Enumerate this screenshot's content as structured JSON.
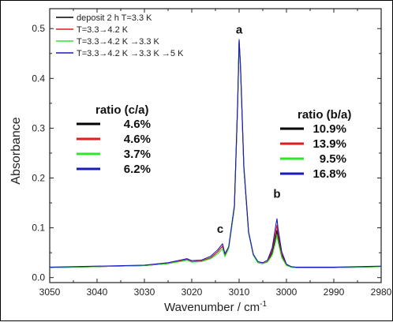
{
  "chart_data": {
    "type": "line",
    "title": "",
    "xlabel": "Wavenumber / cm",
    "xlabel_superscript": "-1",
    "ylabel": "Absorbance",
    "xlim": [
      3050,
      2980
    ],
    "ylim": [
      -0.01,
      0.54
    ],
    "x_reversed": true,
    "x_ticks": [
      3050,
      3040,
      3030,
      3020,
      3010,
      3000,
      2990,
      2980
    ],
    "y_ticks": [
      0.0,
      0.1,
      0.2,
      0.3,
      0.4,
      0.5
    ],
    "x_tick_labels": [
      "3050",
      "3040",
      "3030",
      "3020",
      "3010",
      "3000",
      "2990",
      "2980"
    ],
    "y_tick_labels": [
      "0.0",
      "0.1",
      "0.2",
      "0.3",
      "0.4",
      "0.5"
    ],
    "legend_position": "top-left",
    "grid": false,
    "x": [
      3050,
      3040,
      3030,
      3025,
      3022,
      3021,
      3020,
      3018,
      3016,
      3014.5,
      3013.5,
      3013,
      3012.2,
      3011,
      3010.3,
      3010,
      3009.7,
      3009,
      3008,
      3007,
      3006,
      3005,
      3004,
      3003,
      3002.2,
      3002,
      3001.8,
      3001,
      3000,
      2999,
      2998,
      2995,
      2990,
      2985,
      2980
    ],
    "series": [
      {
        "name": "deposit 2 h T=3.3 K",
        "color": "#000000",
        "values": [
          0.02,
          0.022,
          0.024,
          0.028,
          0.034,
          0.036,
          0.032,
          0.033,
          0.04,
          0.052,
          0.063,
          0.045,
          0.06,
          0.14,
          0.35,
          0.475,
          0.42,
          0.22,
          0.09,
          0.045,
          0.03,
          0.028,
          0.032,
          0.05,
          0.085,
          0.095,
          0.082,
          0.045,
          0.025,
          0.021,
          0.02,
          0.02,
          0.02,
          0.021,
          0.022
        ]
      },
      {
        "name": "T=3.3→4.2 K",
        "color": "#e41a1c",
        "values": [
          0.02,
          0.022,
          0.024,
          0.028,
          0.034,
          0.036,
          0.032,
          0.033,
          0.04,
          0.052,
          0.063,
          0.045,
          0.06,
          0.14,
          0.35,
          0.475,
          0.42,
          0.22,
          0.09,
          0.045,
          0.03,
          0.028,
          0.032,
          0.055,
          0.095,
          0.105,
          0.09,
          0.048,
          0.025,
          0.021,
          0.02,
          0.02,
          0.02,
          0.021,
          0.022
        ]
      },
      {
        "name": "T=3.3→4.2 K →3.3 K",
        "color": "#2ee62e",
        "values": [
          0.02,
          0.022,
          0.024,
          0.028,
          0.033,
          0.035,
          0.031,
          0.032,
          0.038,
          0.048,
          0.058,
          0.042,
          0.058,
          0.14,
          0.35,
          0.473,
          0.42,
          0.22,
          0.09,
          0.045,
          0.03,
          0.028,
          0.031,
          0.045,
          0.075,
          0.085,
          0.073,
          0.04,
          0.024,
          0.021,
          0.02,
          0.02,
          0.02,
          0.021,
          0.022
        ]
      },
      {
        "name": "T=3.3→4.2 K →3.3 K →5 K",
        "color": "#1a1ab8",
        "values": [
          0.021,
          0.023,
          0.025,
          0.03,
          0.036,
          0.038,
          0.034,
          0.035,
          0.043,
          0.056,
          0.068,
          0.048,
          0.062,
          0.145,
          0.355,
          0.478,
          0.425,
          0.225,
          0.092,
          0.047,
          0.032,
          0.03,
          0.035,
          0.06,
          0.108,
          0.118,
          0.1,
          0.052,
          0.027,
          0.022,
          0.021,
          0.021,
          0.021,
          0.022,
          0.023
        ]
      }
    ],
    "peak_labels": [
      {
        "text": "a",
        "x": 3010,
        "y": 0.49
      },
      {
        "text": "b",
        "x": 3002,
        "y": 0.16
      },
      {
        "text": "c",
        "x": 3014,
        "y": 0.09
      }
    ],
    "ratio_tables": [
      {
        "title": "ratio (c/a)",
        "rows": [
          {
            "color": "#000000",
            "value": "4.6%"
          },
          {
            "color": "#e41a1c",
            "value": "4.6%"
          },
          {
            "color": "#2ee62e",
            "value": "3.7%"
          },
          {
            "color": "#1a1ab8",
            "value": "6.2%"
          }
        ]
      },
      {
        "title": "ratio (b/a)",
        "rows": [
          {
            "color": "#000000",
            "value": "10.9%"
          },
          {
            "color": "#e41a1c",
            "value": "13.9%"
          },
          {
            "color": "#2ee62e",
            "value": "9.5%"
          },
          {
            "color": "#1a1ab8",
            "value": "16.8%"
          }
        ]
      }
    ]
  }
}
